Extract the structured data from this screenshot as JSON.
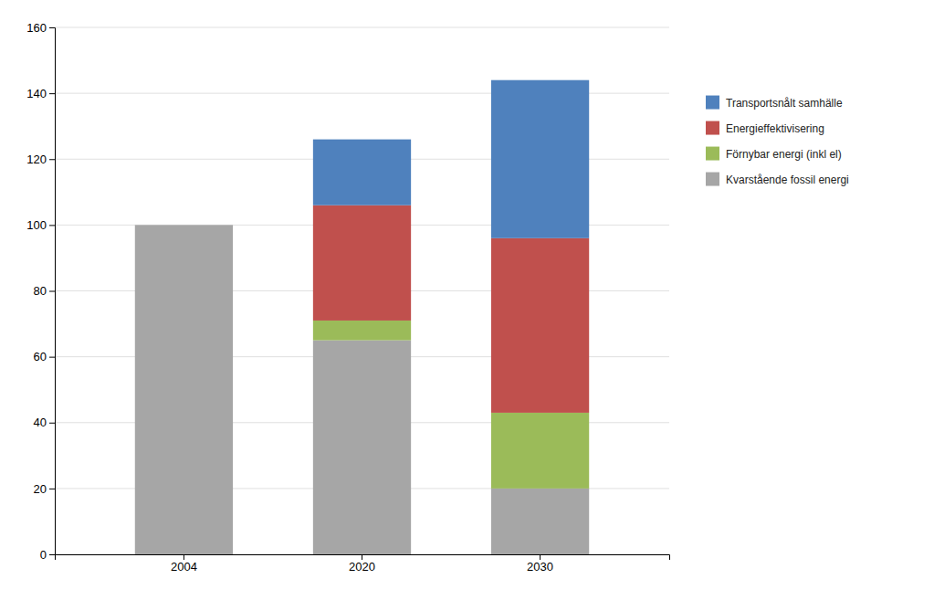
{
  "chart_data": {
    "type": "bar",
    "stacked": true,
    "categories": [
      "2004",
      "2020",
      "2030"
    ],
    "series": [
      {
        "name": "Kvarstående fossil energi",
        "color": "#a6a6a6",
        "values": [
          100,
          65,
          20
        ]
      },
      {
        "name": "Förnybar energi (inkl el)",
        "color": "#9bbb59",
        "values": [
          0,
          6,
          23
        ]
      },
      {
        "name": "Energieffektivisering",
        "color": "#c0504d",
        "values": [
          0,
          35,
          53
        ]
      },
      {
        "name": "Transportsnålt samhälle",
        "color": "#4f81bd",
        "values": [
          0,
          20,
          48
        ]
      }
    ],
    "ylim": [
      0,
      160
    ],
    "yticks": [
      0,
      20,
      40,
      60,
      80,
      100,
      120,
      140,
      160
    ],
    "grid": true,
    "legend": "right"
  }
}
